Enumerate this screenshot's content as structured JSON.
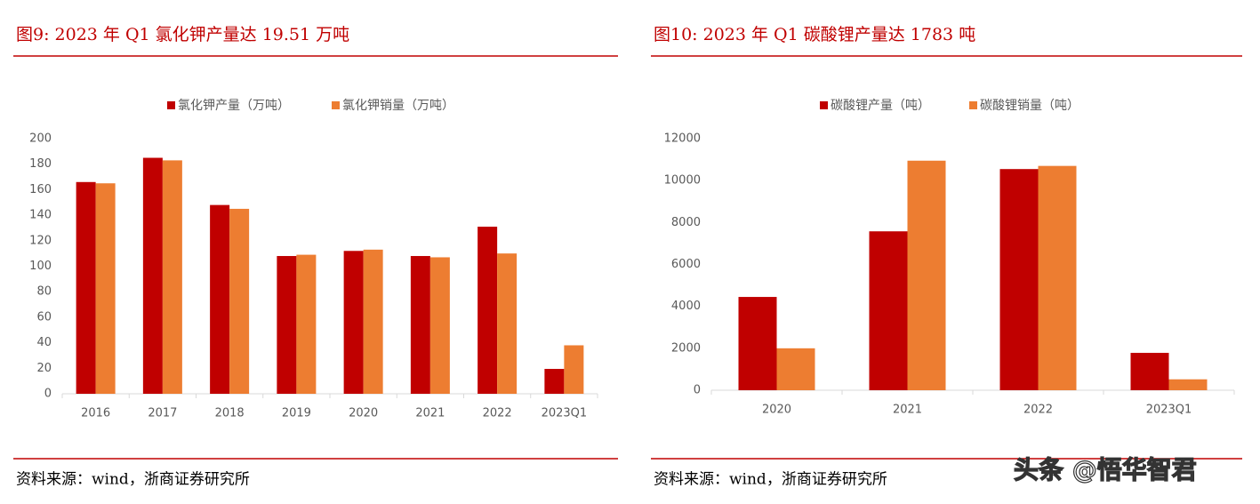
{
  "chart_data": [
    {
      "type": "bar",
      "title": "图9:  2023 年 Q1 氯化钾产量达 19.51 万吨",
      "source": "资料来源：wind，浙商证券研究所",
      "categories": [
        "2016",
        "2017",
        "2018",
        "2019",
        "2020",
        "2021",
        "2022",
        "2023Q1"
      ],
      "series": [
        {
          "name": "氯化钾产量（万吨）",
          "color": "#c00000",
          "values": [
            166,
            185,
            148,
            108,
            112,
            108,
            131,
            19.51
          ]
        },
        {
          "name": "氯化钾销量（万吨）",
          "color": "#ed7d31",
          "values": [
            165,
            183,
            145,
            109,
            113,
            107,
            110,
            38
          ]
        }
      ],
      "ylim": [
        0,
        200
      ],
      "yticks": [
        0,
        20,
        40,
        60,
        80,
        100,
        120,
        140,
        160,
        180,
        200
      ]
    },
    {
      "type": "bar",
      "title": "图10:  2023 年 Q1 碳酸锂产量达 1783 吨",
      "source": "资料来源：wind，浙商证券研究所",
      "categories": [
        "2020",
        "2021",
        "2022",
        "2023Q1"
      ],
      "series": [
        {
          "name": "碳酸锂产量（吨）",
          "color": "#c00000",
          "values": [
            4450,
            7580,
            10550,
            1783
          ]
        },
        {
          "name": "碳酸锂销量（吨）",
          "color": "#ed7d31",
          "values": [
            2000,
            10950,
            10700,
            520
          ]
        }
      ],
      "ylim": [
        0,
        12000
      ],
      "yticks": [
        0,
        2000,
        4000,
        6000,
        8000,
        10000,
        12000
      ]
    }
  ],
  "watermark": "头条 @悟华智君"
}
